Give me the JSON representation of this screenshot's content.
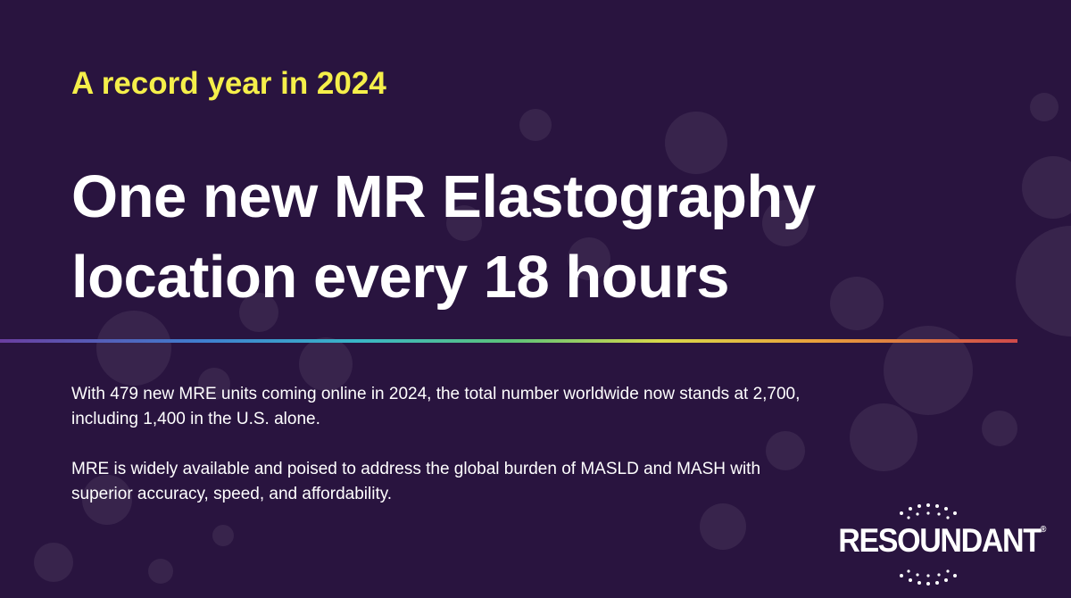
{
  "eyebrow": "A record year in 2024",
  "headline": {
    "lines": [
      "One new MR Elastography",
      "location every 18 hours"
    ]
  },
  "body": {
    "paragraphs": [
      "With 479 new MRE units coming online in 2024, the total number worldwide now stands at 2,700, including 1,400 in the U.S. alone.",
      "MRE is widely available and poised to address the global burden of MASLD and MASH with superior accuracy, speed, and affordability."
    ]
  },
  "logo": {
    "name": "RESOUNDANT",
    "mark": "®"
  }
}
